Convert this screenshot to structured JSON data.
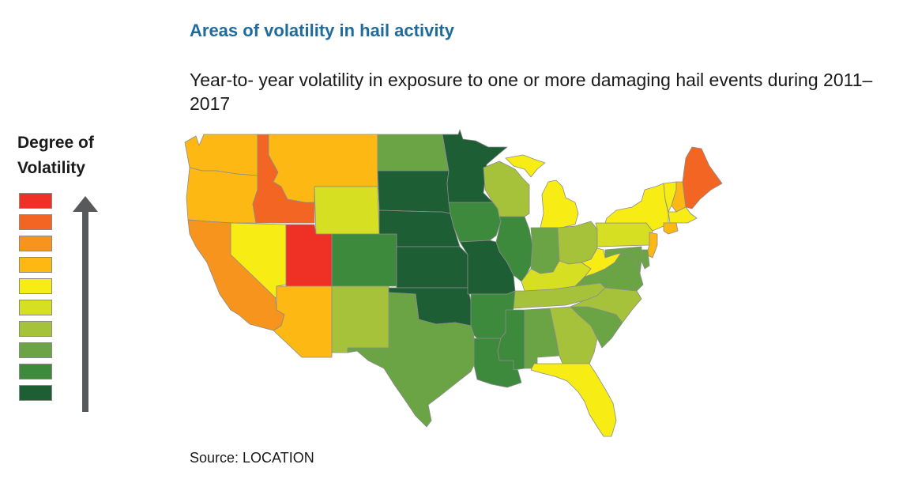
{
  "title": "Areas of volatility in hail activity",
  "subtitle": "Year-to- year volatility in exposure to one or more damaging hail events during 2011–2017",
  "legend": {
    "title_line1": "Degree of",
    "title_line2": "Volatility",
    "scale": [
      "#ee3124",
      "#f26522",
      "#f7941d",
      "#fdb813",
      "#f7ec13",
      "#d7df23",
      "#a6c23b",
      "#6aa444",
      "#3e8a3c",
      "#1d5e34"
    ],
    "direction": "higher volatility at top"
  },
  "source": "Source: LOCATION",
  "map_data": {
    "type": "choropleth",
    "region": "Contiguous United States",
    "levels_note": "level 1 = highest volatility (red), level 10 = lowest (dark green)",
    "states": [
      {
        "code": "WA",
        "level": 4
      },
      {
        "code": "OR",
        "level": 4
      },
      {
        "code": "CA",
        "level": 3
      },
      {
        "code": "NV",
        "level": 5
      },
      {
        "code": "ID",
        "level": 2
      },
      {
        "code": "MT",
        "level": 4
      },
      {
        "code": "WY",
        "level": 6
      },
      {
        "code": "UT",
        "level": 1
      },
      {
        "code": "AZ",
        "level": 4
      },
      {
        "code": "CO",
        "level": 9
      },
      {
        "code": "NM",
        "level": 7
      },
      {
        "code": "ND",
        "level": 8
      },
      {
        "code": "SD",
        "level": 10
      },
      {
        "code": "NE",
        "level": 10
      },
      {
        "code": "KS",
        "level": 10
      },
      {
        "code": "OK",
        "level": 10
      },
      {
        "code": "TX",
        "level": 8
      },
      {
        "code": "MN",
        "level": 10
      },
      {
        "code": "IA",
        "level": 9
      },
      {
        "code": "MO",
        "level": 10
      },
      {
        "code": "AR",
        "level": 9
      },
      {
        "code": "LA",
        "level": 9
      },
      {
        "code": "WI",
        "level": 7
      },
      {
        "code": "IL",
        "level": 9
      },
      {
        "code": "MS",
        "level": 9
      },
      {
        "code": "MI",
        "level": 5
      },
      {
        "code": "IN",
        "level": 8
      },
      {
        "code": "OH",
        "level": 7
      },
      {
        "code": "KY",
        "level": 6
      },
      {
        "code": "TN",
        "level": 7
      },
      {
        "code": "AL",
        "level": 8
      },
      {
        "code": "GA",
        "level": 7
      },
      {
        "code": "FL",
        "level": 5
      },
      {
        "code": "SC",
        "level": 8
      },
      {
        "code": "NC",
        "level": 7
      },
      {
        "code": "VA",
        "level": 8
      },
      {
        "code": "WV",
        "level": 5
      },
      {
        "code": "PA",
        "level": 6
      },
      {
        "code": "NY",
        "level": 5
      },
      {
        "code": "VT",
        "level": 5
      },
      {
        "code": "NH",
        "level": 4
      },
      {
        "code": "ME",
        "level": 2
      },
      {
        "code": "MA",
        "level": 5
      },
      {
        "code": "CT",
        "level": 4
      },
      {
        "code": "NJ",
        "level": 4
      },
      {
        "code": "MD",
        "level": 8
      },
      {
        "code": "DE",
        "level": 8
      }
    ]
  }
}
